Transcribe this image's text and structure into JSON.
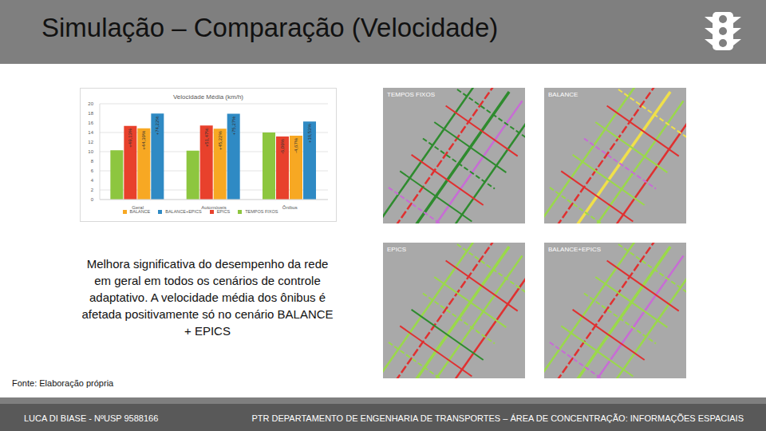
{
  "slide": {
    "title": "Simulação – Comparação (Velocidade)",
    "caption": "Melhora significativa do desempenho da rede em geral em todos os cenários de controle adaptativo. A velocidade média dos ônibus é afetada positivamente só no cenário BALANCE + EPICS",
    "source": "Fonte: Elaboração própria",
    "footer_left": "LUCA DI BIASE - NºUSP 9588166",
    "footer_right": "PTR DEPARTAMENTO DE ENGENHARIA DE TRANSPORTES – ÁREA DE CONCENTRAÇÃO: INFORMAÇÕES ESPACIAIS",
    "maps": [
      "TEMPOS FIXOS",
      "BALANCE",
      "EPICS",
      "BALANCE+EPICS"
    ]
  },
  "chart_data": {
    "type": "bar",
    "title": "Velocidade Média (km/h)",
    "categories": [
      "Geral",
      "Automóveis",
      "Ônibus"
    ],
    "series": [
      {
        "name": "TEMPOS FIXOS",
        "color": "#8dc63f",
        "values": [
          10.3,
          10.2,
          14.0
        ]
      },
      {
        "name": "EPICS",
        "color": "#e8412c",
        "values": [
          15.36,
          15.45,
          13.15
        ],
        "labels": [
          "+49,13%",
          "+51,47%",
          "-6,09%"
        ]
      },
      {
        "name": "BALANCE",
        "color": "#f7a823",
        "values": [
          14.87,
          14.8,
          13.35
        ],
        "labels": [
          "+44,39%",
          "+45,22%",
          "-4,67%"
        ]
      },
      {
        "name": "BALANCE+EPICS",
        "color": "#2f8ac4",
        "values": [
          17.94,
          17.9,
          16.3
        ],
        "labels": [
          "+74,22%",
          "+75,27%",
          "+16,53%"
        ]
      }
    ],
    "ylim": [
      0,
      20
    ],
    "yticks": [
      0,
      2,
      4,
      6,
      8,
      10,
      12,
      14,
      16,
      18,
      20
    ],
    "grid": true,
    "legend": "bottom"
  }
}
